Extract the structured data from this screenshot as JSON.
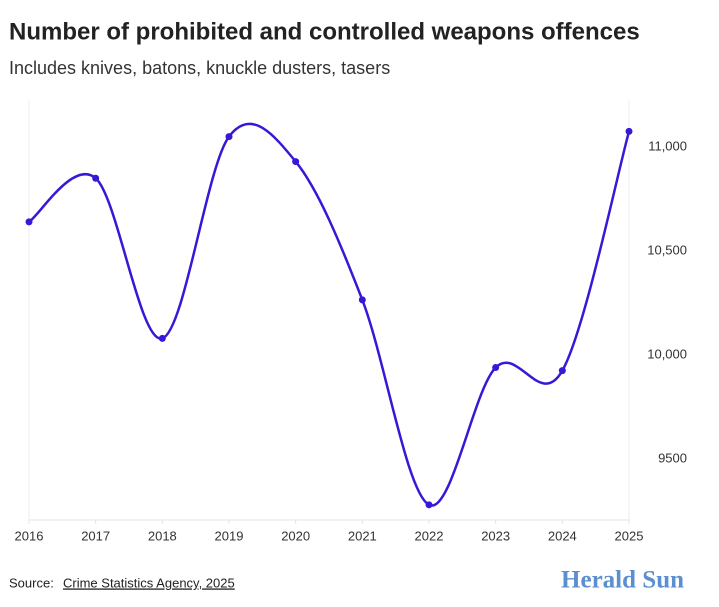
{
  "chart_data": {
    "type": "line",
    "title": "Number of prohibited and controlled weapons offences",
    "subtitle": "Includes knives, batons, knuckle dusters, tasers",
    "x": [
      2016,
      2017,
      2018,
      2019,
      2020,
      2021,
      2022,
      2023,
      2024,
      2025
    ],
    "series": [
      {
        "name": "Offences",
        "color": "#3a17d6",
        "values": [
          10640,
          10850,
          10080,
          11050,
          10930,
          10265,
          9280,
          9940,
          9925,
          11075
        ]
      }
    ],
    "xlim": [
      2016,
      2025
    ],
    "xticks": [
      2016,
      2017,
      2018,
      2019,
      2020,
      2021,
      2022,
      2023,
      2024,
      2025
    ],
    "ylim": [
      9207,
      11226
    ],
    "yticks": [
      {
        "value": 11000,
        "label": "11,000"
      },
      {
        "value": 10500,
        "label": "10,500"
      },
      {
        "value": 10000,
        "label": "10,000"
      },
      9500
    ],
    "source_prefix": "Source:",
    "source": "Crime Statistics Agency, 2025",
    "brand": "Herald Sun"
  }
}
